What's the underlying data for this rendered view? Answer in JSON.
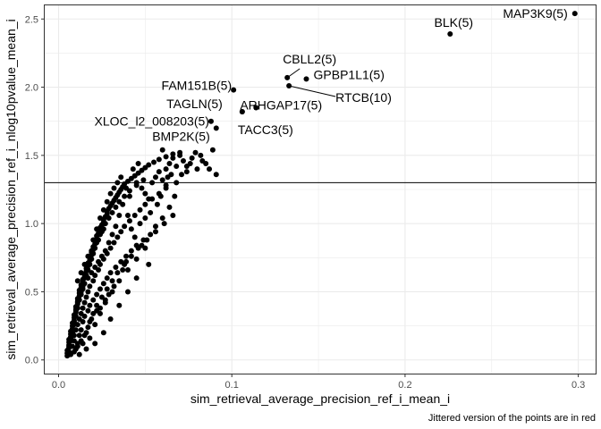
{
  "chart_data": {
    "type": "scatter",
    "xlabel": "sim_retrieval_average_precision_ref_i_mean_i",
    "ylabel": "sim_retrieval_average_precision_ref_i_nlog10pvalue_mean_i",
    "caption": "Jittered version of the points are in red",
    "xlim": [
      -0.008,
      0.31
    ],
    "ylim": [
      -0.1,
      2.6
    ],
    "x_ticks": [
      0.0,
      0.1,
      0.2,
      0.3
    ],
    "x_tick_labels": [
      "0.0",
      "0.1",
      "0.2",
      "0.3"
    ],
    "y_ticks": [
      0.0,
      0.5,
      1.0,
      1.5,
      2.0,
      2.5
    ],
    "y_tick_labels": [
      "0.0",
      "0.5",
      "1.0",
      "1.5",
      "2.0",
      "2.5"
    ],
    "hline": 1.3,
    "grid": true,
    "colors": {
      "point": "#000000",
      "grid": "#ebebeb",
      "panel_border": "#333333",
      "hline": "#000000"
    },
    "labeled_points": [
      {
        "label": "MAP3K9(5)",
        "x": 0.298,
        "y": 2.54
      },
      {
        "label": "BLK(5)",
        "x": 0.226,
        "y": 2.39
      },
      {
        "label": "CBLL2(5)",
        "x": 0.132,
        "y": 2.07
      },
      {
        "label": "FAM151B(5)",
        "x": 0.101,
        "y": 1.98
      },
      {
        "label": "GPBP1L1(5)",
        "x": 0.143,
        "y": 2.06
      },
      {
        "label": "RTCB(10)",
        "x": 0.133,
        "y": 2.01
      },
      {
        "label": "ARHGAP17(5)",
        "x": 0.114,
        "y": 1.85
      },
      {
        "label": "TAGLN(5)",
        "x": 0.106,
        "y": 1.82
      },
      {
        "label": "TACC3(5)",
        "x": 0.106,
        "y": 1.82
      },
      {
        "label": "XLOC_l2_008203(5)",
        "x": 0.088,
        "y": 1.75
      },
      {
        "label": "BMP2K(5)",
        "x": 0.091,
        "y": 1.7
      }
    ],
    "points": [
      [
        0.005,
        0.03
      ],
      [
        0.005,
        0.05
      ],
      [
        0.005,
        0.07
      ],
      [
        0.006,
        0.09
      ],
      [
        0.006,
        0.11
      ],
      [
        0.006,
        0.13
      ],
      [
        0.006,
        0.15
      ],
      [
        0.007,
        0.17
      ],
      [
        0.007,
        0.19
      ],
      [
        0.007,
        0.21
      ],
      [
        0.008,
        0.23
      ],
      [
        0.008,
        0.25
      ],
      [
        0.008,
        0.27
      ],
      [
        0.009,
        0.29
      ],
      [
        0.009,
        0.31
      ],
      [
        0.009,
        0.33
      ],
      [
        0.01,
        0.35
      ],
      [
        0.01,
        0.37
      ],
      [
        0.01,
        0.39
      ],
      [
        0.011,
        0.41
      ],
      [
        0.011,
        0.43
      ],
      [
        0.011,
        0.45
      ],
      [
        0.012,
        0.47
      ],
      [
        0.012,
        0.49
      ],
      [
        0.012,
        0.51
      ],
      [
        0.013,
        0.53
      ],
      [
        0.013,
        0.55
      ],
      [
        0.014,
        0.57
      ],
      [
        0.014,
        0.59
      ],
      [
        0.015,
        0.61
      ],
      [
        0.015,
        0.63
      ],
      [
        0.016,
        0.65
      ],
      [
        0.016,
        0.67
      ],
      [
        0.017,
        0.69
      ],
      [
        0.017,
        0.71
      ],
      [
        0.018,
        0.73
      ],
      [
        0.018,
        0.75
      ],
      [
        0.019,
        0.77
      ],
      [
        0.019,
        0.79
      ],
      [
        0.02,
        0.81
      ],
      [
        0.02,
        0.83
      ],
      [
        0.021,
        0.85
      ],
      [
        0.021,
        0.87
      ],
      [
        0.022,
        0.89
      ],
      [
        0.022,
        0.91
      ],
      [
        0.023,
        0.93
      ],
      [
        0.024,
        0.95
      ],
      [
        0.024,
        0.97
      ],
      [
        0.025,
        0.99
      ],
      [
        0.026,
        1.01
      ],
      [
        0.026,
        1.03
      ],
      [
        0.027,
        1.05
      ],
      [
        0.028,
        1.07
      ],
      [
        0.028,
        1.09
      ],
      [
        0.029,
        1.11
      ],
      [
        0.03,
        1.13
      ],
      [
        0.031,
        1.15
      ],
      [
        0.032,
        1.17
      ],
      [
        0.033,
        1.19
      ],
      [
        0.034,
        1.21
      ],
      [
        0.035,
        1.23
      ],
      [
        0.036,
        1.25
      ],
      [
        0.037,
        1.27
      ],
      [
        0.038,
        1.29
      ],
      [
        0.04,
        1.31
      ],
      [
        0.042,
        1.33
      ],
      [
        0.044,
        1.35
      ],
      [
        0.046,
        1.37
      ],
      [
        0.048,
        1.39
      ],
      [
        0.05,
        1.41
      ],
      [
        0.052,
        1.43
      ],
      [
        0.055,
        1.45
      ],
      [
        0.058,
        1.47
      ],
      [
        0.062,
        1.49
      ],
      [
        0.066,
        1.51
      ],
      [
        0.07,
        1.52
      ],
      [
        0.006,
        0.06
      ],
      [
        0.006,
        0.1
      ],
      [
        0.007,
        0.14
      ],
      [
        0.007,
        0.16
      ],
      [
        0.008,
        0.2
      ],
      [
        0.008,
        0.22
      ],
      [
        0.009,
        0.26
      ],
      [
        0.009,
        0.28
      ],
      [
        0.01,
        0.32
      ],
      [
        0.01,
        0.36
      ],
      [
        0.011,
        0.38
      ],
      [
        0.011,
        0.42
      ],
      [
        0.012,
        0.44
      ],
      [
        0.013,
        0.48
      ],
      [
        0.013,
        0.5
      ],
      [
        0.014,
        0.54
      ],
      [
        0.015,
        0.56
      ],
      [
        0.015,
        0.6
      ],
      [
        0.016,
        0.62
      ],
      [
        0.017,
        0.66
      ],
      [
        0.018,
        0.7
      ],
      [
        0.019,
        0.74
      ],
      [
        0.02,
        0.78
      ],
      [
        0.021,
        0.82
      ],
      [
        0.022,
        0.86
      ],
      [
        0.023,
        0.88
      ],
      [
        0.024,
        0.92
      ],
      [
        0.025,
        0.94
      ],
      [
        0.026,
        0.96
      ],
      [
        0.027,
        1.0
      ],
      [
        0.029,
        1.04
      ],
      [
        0.031,
        1.08
      ],
      [
        0.033,
        1.12
      ],
      [
        0.035,
        1.16
      ],
      [
        0.038,
        1.2
      ],
      [
        0.041,
        1.24
      ],
      [
        0.045,
        1.28
      ],
      [
        0.049,
        1.32
      ],
      [
        0.008,
        0.1
      ],
      [
        0.009,
        0.14
      ],
      [
        0.009,
        0.18
      ],
      [
        0.01,
        0.22
      ],
      [
        0.011,
        0.26
      ],
      [
        0.012,
        0.3
      ],
      [
        0.013,
        0.34
      ],
      [
        0.014,
        0.38
      ],
      [
        0.015,
        0.42
      ],
      [
        0.016,
        0.46
      ],
      [
        0.017,
        0.5
      ],
      [
        0.018,
        0.54
      ],
      [
        0.02,
        0.58
      ],
      [
        0.021,
        0.62
      ],
      [
        0.023,
        0.66
      ],
      [
        0.024,
        0.7
      ],
      [
        0.026,
        0.74
      ],
      [
        0.028,
        0.78
      ],
      [
        0.03,
        0.82
      ],
      [
        0.032,
        0.86
      ],
      [
        0.034,
        0.9
      ],
      [
        0.036,
        0.94
      ],
      [
        0.038,
        0.98
      ],
      [
        0.041,
        1.02
      ],
      [
        0.044,
        1.06
      ],
      [
        0.047,
        1.1
      ],
      [
        0.05,
        1.14
      ],
      [
        0.054,
        1.18
      ],
      [
        0.058,
        1.22
      ],
      [
        0.062,
        1.26
      ],
      [
        0.01,
        0.08
      ],
      [
        0.011,
        0.12
      ],
      [
        0.012,
        0.18
      ],
      [
        0.013,
        0.22
      ],
      [
        0.014,
        0.28
      ],
      [
        0.015,
        0.32
      ],
      [
        0.017,
        0.36
      ],
      [
        0.018,
        0.4
      ],
      [
        0.02,
        0.44
      ],
      [
        0.022,
        0.48
      ],
      [
        0.024,
        0.52
      ],
      [
        0.026,
        0.56
      ],
      [
        0.028,
        0.6
      ],
      [
        0.03,
        0.64
      ],
      [
        0.033,
        0.68
      ],
      [
        0.036,
        0.72
      ],
      [
        0.039,
        0.76
      ],
      [
        0.042,
        0.8
      ],
      [
        0.045,
        0.84
      ],
      [
        0.049,
        0.88
      ],
      [
        0.014,
        0.12
      ],
      [
        0.016,
        0.2
      ],
      [
        0.018,
        0.28
      ],
      [
        0.02,
        0.34
      ],
      [
        0.022,
        0.4
      ],
      [
        0.025,
        0.46
      ],
      [
        0.028,
        0.52
      ],
      [
        0.031,
        0.58
      ],
      [
        0.034,
        0.64
      ],
      [
        0.038,
        0.7
      ],
      [
        0.042,
        0.76
      ],
      [
        0.046,
        0.82
      ],
      [
        0.051,
        0.88
      ],
      [
        0.056,
        0.94
      ],
      [
        0.061,
        1.0
      ],
      [
        0.066,
        1.06
      ],
      [
        0.018,
        0.16
      ],
      [
        0.021,
        0.26
      ],
      [
        0.024,
        0.34
      ],
      [
        0.027,
        0.42
      ],
      [
        0.031,
        0.5
      ],
      [
        0.035,
        0.58
      ],
      [
        0.04,
        0.66
      ],
      [
        0.045,
        0.74
      ],
      [
        0.05,
        0.82
      ],
      [
        0.03,
        0.3
      ],
      [
        0.035,
        0.4
      ],
      [
        0.04,
        0.5
      ],
      [
        0.045,
        0.6
      ],
      [
        0.052,
        0.7
      ],
      [
        0.012,
        0.04
      ],
      [
        0.016,
        0.08
      ],
      [
        0.021,
        0.12
      ],
      [
        0.026,
        0.2
      ],
      [
        0.011,
        0.58
      ],
      [
        0.013,
        0.64
      ],
      [
        0.015,
        0.7
      ],
      [
        0.017,
        0.76
      ],
      [
        0.019,
        0.8
      ],
      [
        0.02,
        0.88
      ],
      [
        0.022,
        0.96
      ],
      [
        0.024,
        1.04
      ],
      [
        0.026,
        1.1
      ],
      [
        0.028,
        1.16
      ],
      [
        0.03,
        1.22
      ],
      [
        0.032,
        1.26
      ],
      [
        0.034,
        1.3
      ],
      [
        0.036,
        1.34
      ],
      [
        0.045,
        1.3
      ],
      [
        0.048,
        1.26
      ],
      [
        0.05,
        1.22
      ],
      [
        0.052,
        1.18
      ],
      [
        0.054,
        1.3
      ],
      [
        0.056,
        1.34
      ],
      [
        0.058,
        1.38
      ],
      [
        0.06,
        1.32
      ],
      [
        0.062,
        1.4
      ],
      [
        0.064,
        1.44
      ],
      [
        0.066,
        1.48
      ],
      [
        0.068,
        1.42
      ],
      [
        0.07,
        1.5
      ],
      [
        0.072,
        1.46
      ],
      [
        0.074,
        1.38
      ],
      [
        0.076,
        1.44
      ],
      [
        0.079,
        1.52
      ],
      [
        0.082,
        1.5
      ],
      [
        0.085,
        1.44
      ],
      [
        0.087,
        1.4
      ],
      [
        0.089,
        1.54
      ],
      [
        0.091,
        1.36
      ],
      [
        0.06,
        1.54
      ],
      [
        0.063,
        1.34
      ],
      [
        0.046,
        1.44
      ],
      [
        0.043,
        1.4
      ],
      [
        0.041,
        1.2
      ],
      [
        0.039,
        1.26
      ],
      [
        0.037,
        1.14
      ],
      [
        0.035,
        1.06
      ],
      [
        0.033,
        0.98
      ],
      [
        0.031,
        0.92
      ],
      [
        0.029,
        0.86
      ],
      [
        0.027,
        0.8
      ],
      [
        0.025,
        0.76
      ],
      [
        0.023,
        0.72
      ],
      [
        0.021,
        0.68
      ],
      [
        0.019,
        0.64
      ],
      [
        0.017,
        0.6
      ],
      [
        0.014,
        0.52
      ],
      [
        0.04,
        1.06
      ],
      [
        0.042,
        0.96
      ],
      [
        0.044,
        0.9
      ],
      [
        0.047,
        1.0
      ],
      [
        0.05,
        1.04
      ],
      [
        0.053,
        1.08
      ],
      [
        0.057,
        1.14
      ],
      [
        0.059,
        1.2
      ],
      [
        0.062,
        1.28
      ],
      [
        0.065,
        1.36
      ],
      [
        0.068,
        1.3
      ],
      [
        0.071,
        1.36
      ],
      [
        0.074,
        1.42
      ],
      [
        0.077,
        1.48
      ],
      [
        0.08,
        1.4
      ],
      [
        0.083,
        1.46
      ],
      [
        0.06,
        1.04
      ],
      [
        0.064,
        1.12
      ],
      [
        0.067,
        1.2
      ],
      [
        0.048,
        0.84
      ],
      [
        0.053,
        0.92
      ],
      [
        0.056,
        0.98
      ],
      [
        0.039,
        0.72
      ],
      [
        0.037,
        0.66
      ],
      [
        0.032,
        0.54
      ],
      [
        0.029,
        0.48
      ],
      [
        0.027,
        0.44
      ],
      [
        0.024,
        0.38
      ],
      [
        0.022,
        0.36
      ],
      [
        0.019,
        0.3
      ],
      [
        0.017,
        0.24
      ],
      [
        0.015,
        0.18
      ],
      [
        0.013,
        0.14
      ],
      [
        0.011,
        0.1
      ],
      [
        0.009,
        0.06
      ],
      [
        0.007,
        0.04
      ]
    ]
  }
}
